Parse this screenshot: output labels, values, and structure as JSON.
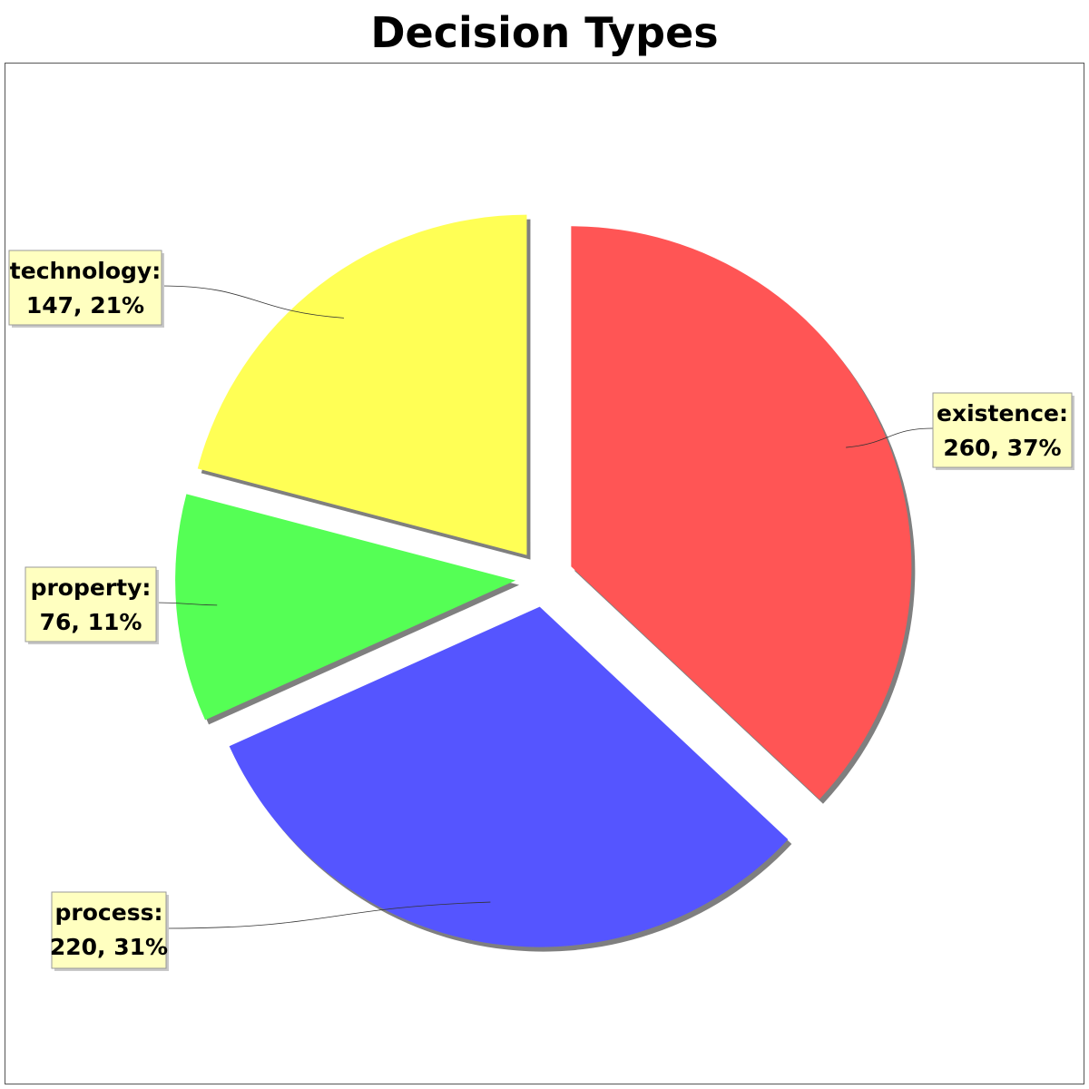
{
  "chart_data": {
    "type": "pie",
    "title": "Decision Types",
    "slices": [
      {
        "label": "existence",
        "value": 260,
        "percent": "37%",
        "color": "#ff5555"
      },
      {
        "label": "process",
        "value": 220,
        "percent": "31%",
        "color": "#5555ff"
      },
      {
        "label": "property",
        "value": 76,
        "percent": "11%",
        "color": "#55ff55"
      },
      {
        "label": "technology",
        "value": 147,
        "percent": "21%",
        "color": "#ffff55"
      }
    ],
    "exploded": true,
    "label_style": {
      "background": "#ffffc0",
      "border": "#999999"
    }
  }
}
